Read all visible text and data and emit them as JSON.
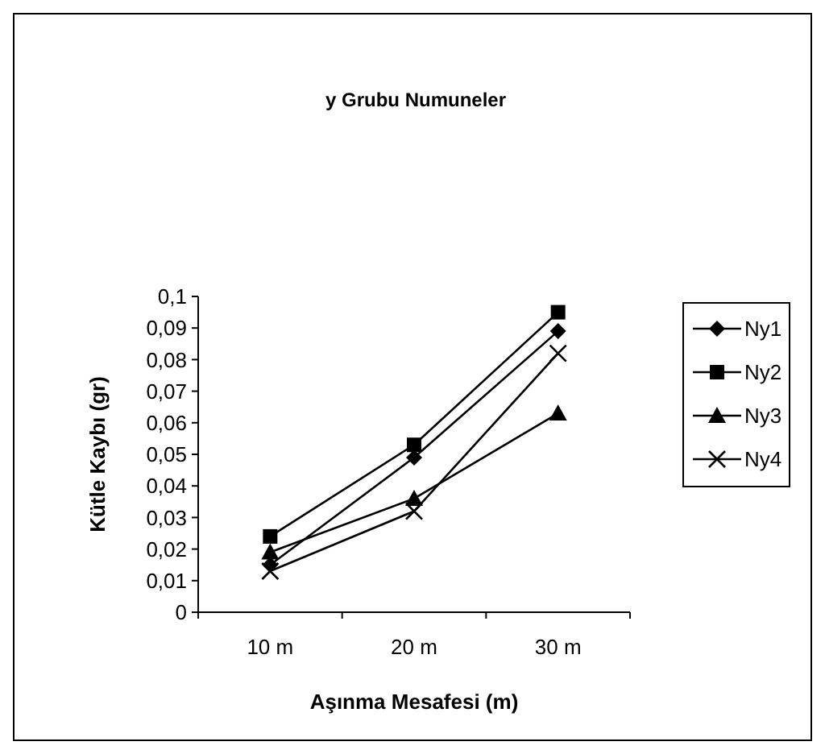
{
  "chart_data": {
    "type": "line",
    "title": "y Grubu Numuneler",
    "xlabel": "Aşınma Mesafesi (m)",
    "ylabel": "Kütle Kaybı (gr)",
    "categories": [
      "10 m",
      "20 m",
      "30 m"
    ],
    "ylim": [
      0,
      0.1
    ],
    "yticks": [
      0,
      {
        "value": 0.01,
        "label": "0,01"
      },
      {
        "value": 0.02,
        "label": "0,02"
      },
      {
        "value": 0.03,
        "label": "0,03"
      },
      {
        "value": 0.04,
        "label": "0,04"
      },
      {
        "value": 0.05,
        "label": "0,05"
      },
      {
        "value": 0.06,
        "label": "0,06"
      },
      {
        "value": 0.07,
        "label": "0,07"
      },
      {
        "value": 0.08,
        "label": "0,08"
      },
      {
        "value": 0.09,
        "label": "0,09"
      },
      {
        "value": 0.1,
        "label": "0,1"
      }
    ],
    "grid": false,
    "legend": "right",
    "line_style": "solid",
    "series": [
      {
        "name": "Ny1",
        "color": "#000000",
        "marker": "diamond",
        "values": [
          0.015,
          0.049,
          0.089
        ]
      },
      {
        "name": "Ny2",
        "color": "#000000",
        "marker": "square",
        "values": [
          0.024,
          0.053,
          0.095
        ]
      },
      {
        "name": "Ny3",
        "color": "#000000",
        "marker": "triangle",
        "values": [
          0.019,
          0.036,
          0.063
        ]
      },
      {
        "name": "Ny4",
        "color": "#000000",
        "marker": "cross",
        "values": [
          0.013,
          0.032,
          0.082
        ]
      }
    ]
  }
}
